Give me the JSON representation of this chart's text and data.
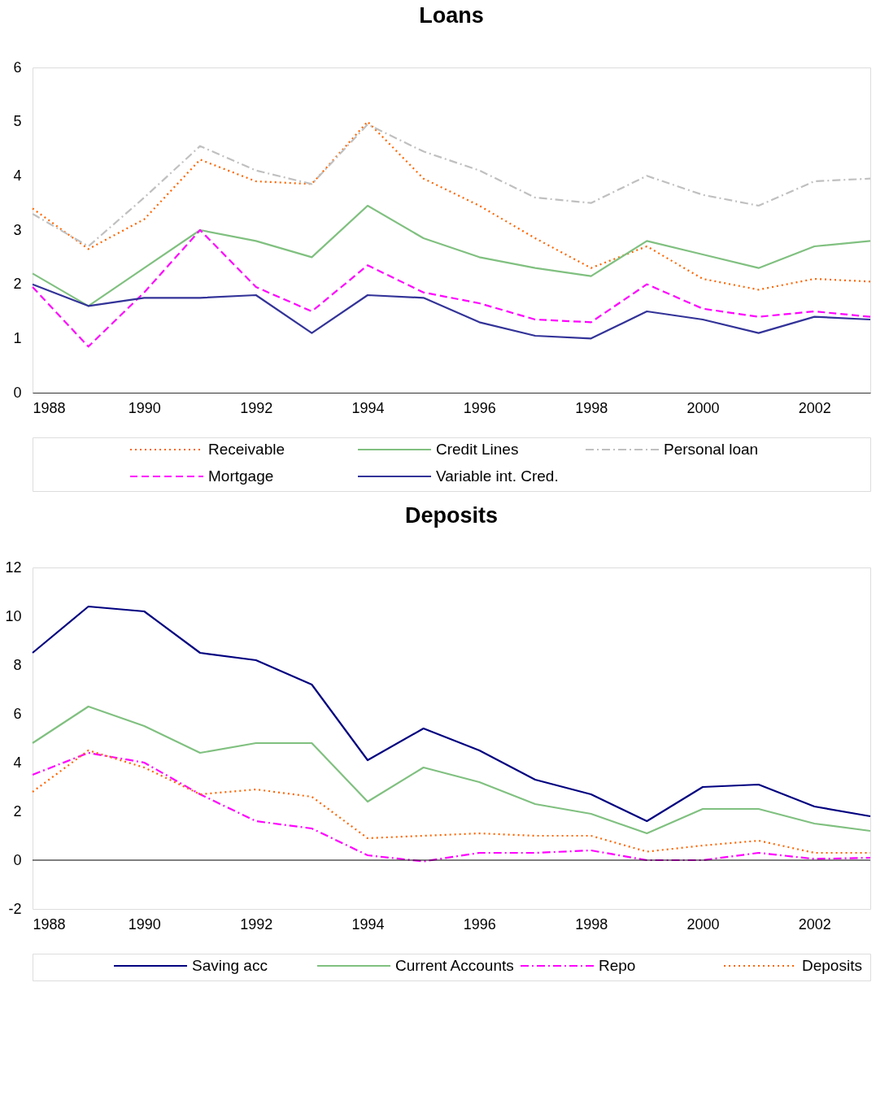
{
  "chart_data": [
    {
      "type": "line",
      "title": "Loans",
      "x": [
        1988,
        1989,
        1990,
        1991,
        1992,
        1993,
        1994,
        1995,
        1996,
        1997,
        1998,
        1999,
        2000,
        2001,
        2002,
        2003
      ],
      "xlim": [
        1988,
        2003
      ],
      "xticks": [
        1988,
        1990,
        1992,
        1994,
        1996,
        1998,
        2000,
        2002
      ],
      "ylim": [
        0,
        6
      ],
      "yticks": [
        0,
        1,
        2,
        3,
        4,
        5,
        6
      ],
      "grid": false,
      "legend": "bottom",
      "marker": "none",
      "series": [
        {
          "name": "Receivable",
          "color": "#ff6600",
          "line_style": "dotted",
          "values": [
            3.4,
            2.65,
            3.2,
            4.3,
            3.9,
            3.85,
            5.0,
            3.95,
            3.45,
            2.85,
            2.3,
            2.7,
            2.1,
            1.9,
            2.1,
            2.05
          ]
        },
        {
          "name": "Credit Lines",
          "color": "#80c080",
          "line_style": "solid",
          "values": [
            2.2,
            1.6,
            2.3,
            3.0,
            2.8,
            2.5,
            3.45,
            2.85,
            2.5,
            2.3,
            2.15,
            2.8,
            2.55,
            2.3,
            2.7,
            2.8
          ]
        },
        {
          "name": "Personal loan",
          "color": "#c0c0c0",
          "line_style": "dashdot",
          "values": [
            3.3,
            2.7,
            3.6,
            4.55,
            4.1,
            3.85,
            4.95,
            4.45,
            4.1,
            3.6,
            3.5,
            4.0,
            3.65,
            3.45,
            3.9,
            3.95
          ]
        },
        {
          "name": "Mortgage",
          "color": "#ff00ff",
          "line_style": "dashed",
          "values": [
            1.95,
            0.85,
            1.85,
            3.0,
            1.95,
            1.5,
            2.35,
            1.85,
            1.65,
            1.35,
            1.3,
            2.0,
            1.55,
            1.4,
            1.5,
            1.4
          ]
        },
        {
          "name": "Variable int. Cred.",
          "color": "#333399",
          "line_style": "solid",
          "values": [
            2.0,
            1.6,
            1.75,
            1.75,
            1.8,
            1.1,
            1.8,
            1.75,
            1.3,
            1.05,
            1.0,
            1.5,
            1.35,
            1.1,
            1.4,
            1.35
          ]
        }
      ]
    },
    {
      "type": "line",
      "title": "Deposits",
      "x": [
        1988,
        1989,
        1990,
        1991,
        1992,
        1993,
        1994,
        1995,
        1996,
        1997,
        1998,
        1999,
        2000,
        2001,
        2002,
        2003
      ],
      "xlim": [
        1988,
        2003
      ],
      "xticks": [
        1988,
        1990,
        1992,
        1994,
        1996,
        1998,
        2000,
        2002
      ],
      "ylim": [
        -2,
        12
      ],
      "yticks": [
        -2,
        0,
        2,
        4,
        6,
        8,
        10,
        12
      ],
      "grid": false,
      "legend": "bottom",
      "marker": "none",
      "ref_lines": [
        {
          "axis": "y",
          "value": 0,
          "color": "#000000"
        }
      ],
      "series": [
        {
          "name": "Saving acc",
          "color": "#000080",
          "line_style": "solid",
          "values": [
            8.5,
            10.4,
            10.2,
            8.5,
            8.2,
            7.2,
            4.1,
            5.4,
            4.5,
            3.3,
            2.7,
            1.6,
            3.0,
            3.1,
            2.2,
            1.8
          ]
        },
        {
          "name": "Current Accounts",
          "color": "#80c080",
          "line_style": "solid",
          "values": [
            4.8,
            6.3,
            5.5,
            4.4,
            4.8,
            4.8,
            2.4,
            3.8,
            3.2,
            2.3,
            1.9,
            1.1,
            2.1,
            2.1,
            1.5,
            1.2
          ]
        },
        {
          "name": "Repo",
          "color": "#ff00ff",
          "line_style": "dashdot",
          "values": [
            3.5,
            4.4,
            4.0,
            2.7,
            1.6,
            1.3,
            0.2,
            -0.05,
            0.3,
            0.3,
            0.4,
            0.0,
            0.0,
            0.3,
            0.05,
            0.1
          ]
        },
        {
          "name": "Deposits",
          "color": "#ff6600",
          "line_style": "dotted",
          "values": [
            2.8,
            4.5,
            3.8,
            2.7,
            2.9,
            2.6,
            0.9,
            1.0,
            1.1,
            1.0,
            1.0,
            0.35,
            0.6,
            0.8,
            0.3,
            0.3
          ]
        }
      ]
    }
  ]
}
